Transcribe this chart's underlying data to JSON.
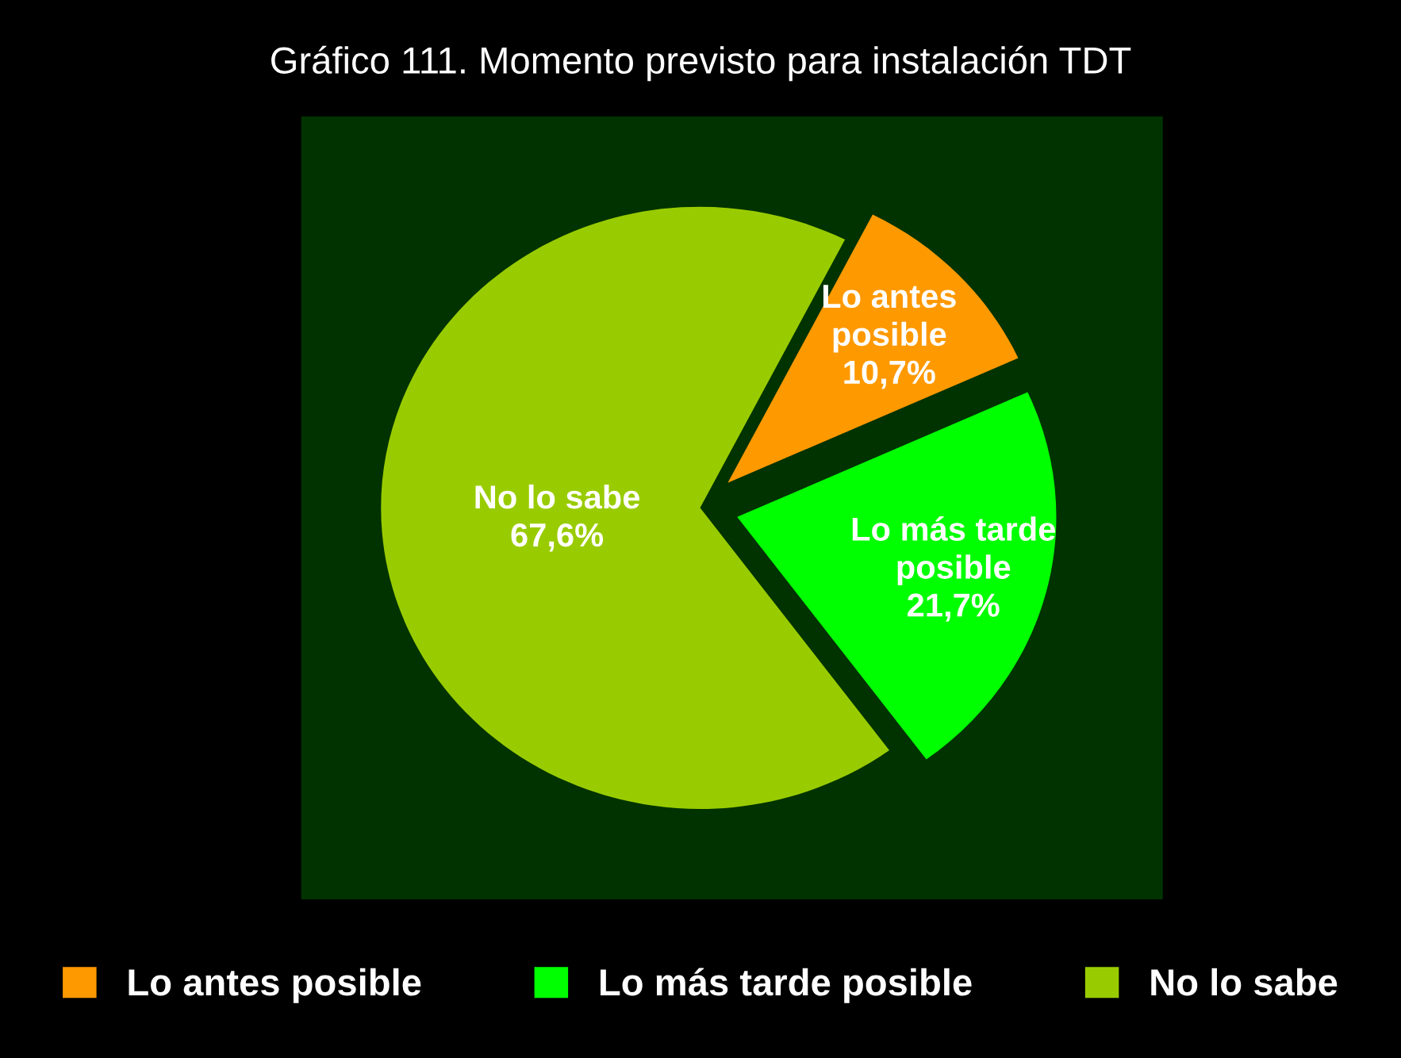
{
  "chart_data": {
    "type": "pie",
    "title": "Gráfico 111. Momento previsto para instalación TDT",
    "categories": [
      "Lo antes posible",
      "Lo más tarde posible",
      "No lo sabe"
    ],
    "values": [
      10.7,
      21.7,
      67.6
    ],
    "colors": [
      "#ff9900",
      "#00ff00",
      "#99cc00"
    ],
    "value_labels": [
      "Lo antes\nposible\n10,7%",
      "Lo más tarde\nposible\n21,7%",
      "No lo sabe\n67,6%"
    ],
    "legend": "bottom"
  }
}
